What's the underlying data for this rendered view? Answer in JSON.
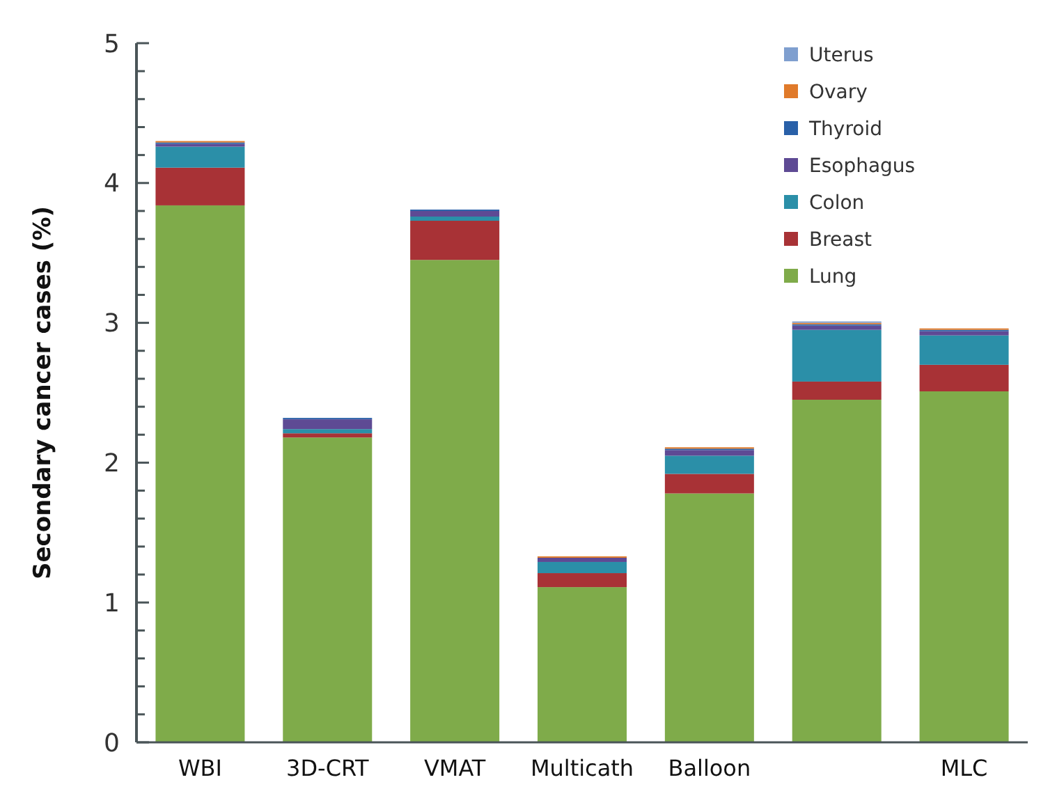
{
  "chart_data": {
    "type": "bar",
    "stacked": true,
    "ylabel": "Secondary cancer cases (%)",
    "categories": [
      "WBI",
      "3D-CRT",
      "VMAT",
      "Multicath",
      "Balloon",
      null,
      "MLC"
    ],
    "series": [
      {
        "name": "Lung",
        "color": "#7fab4a",
        "values": [
          3.84,
          2.18,
          3.45,
          1.11,
          1.78,
          2.45,
          2.51
        ]
      },
      {
        "name": "Breast",
        "color": "#a83236",
        "values": [
          0.27,
          0.03,
          0.28,
          0.1,
          0.14,
          0.13,
          0.19
        ]
      },
      {
        "name": "Colon",
        "color": "#2b8fa8",
        "values": [
          0.15,
          0.03,
          0.03,
          0.08,
          0.13,
          0.37,
          0.21
        ]
      },
      {
        "name": "Esophagus",
        "color": "#5e4a94",
        "values": [
          0.02,
          0.07,
          0.04,
          0.03,
          0.04,
          0.03,
          0.03
        ]
      },
      {
        "name": "Thyroid",
        "color": "#2960a8",
        "values": [
          0.01,
          0.01,
          0.01,
          0,
          0.01,
          0.01,
          0.01
        ]
      },
      {
        "name": "Ovary",
        "color": "#e07a2a",
        "values": [
          0.01,
          0,
          0,
          0.01,
          0.01,
          0.01,
          0.01
        ]
      },
      {
        "name": "Uterus",
        "color": "#7f9fcf",
        "values": [
          0,
          0,
          0,
          0,
          0,
          0.01,
          0
        ]
      }
    ],
    "ylim": [
      0,
      5
    ],
    "yticks": [
      0,
      {
        "value": 0.2,
        "label": null
      },
      {
        "value": 0.4,
        "label": null
      },
      {
        "value": 0.6,
        "label": null
      },
      {
        "value": 0.8,
        "label": null
      },
      1,
      {
        "value": 1.2,
        "label": null
      },
      {
        "value": 1.4,
        "label": null
      },
      {
        "value": 1.6,
        "label": null
      },
      {
        "value": 1.8,
        "label": null
      },
      2,
      {
        "value": 2.2,
        "label": null
      },
      {
        "value": 2.4,
        "label": null
      },
      {
        "value": 2.6,
        "label": null
      },
      {
        "value": 2.8,
        "label": null
      },
      3,
      {
        "value": 3.2,
        "label": null
      },
      {
        "value": 3.4,
        "label": null
      },
      {
        "value": 3.6,
        "label": null
      },
      {
        "value": 3.8,
        "label": null
      },
      4,
      {
        "value": 4.2,
        "label": null
      },
      {
        "value": 4.4,
        "label": null
      },
      {
        "value": 4.6,
        "label": null
      },
      {
        "value": 4.8,
        "label": null
      },
      5
    ],
    "legend": "top right",
    "grid": false
  }
}
